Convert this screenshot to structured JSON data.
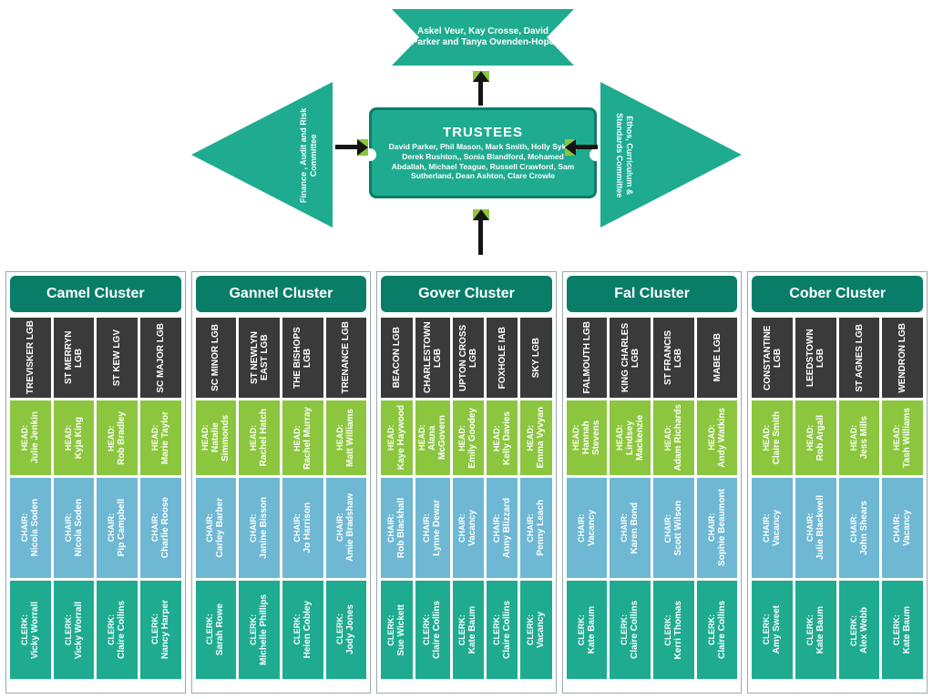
{
  "colors": {
    "teal": "#1fab90",
    "teal_dark": "#0a7d69",
    "grey_dark": "#3a3a3a",
    "green": "#8cc63f",
    "sky": "#6fb8d3",
    "text": "#ffffff"
  },
  "top": {
    "members": "Askel Veur, Kay Crosse, David Parker and Tanya Ovenden-Hope",
    "trustees_title": "TRUSTEES",
    "trustees_names": "David Parker, Phil Mason, Mark Smith, Holly Sykes, Derek Rushton,, Sonia Blandford, Mohamed Abdallah, Michael Teague, Russell Crawford, Sam Sutherland, Dean Ashton, Clare Crowle",
    "left_committee": "Finance , Audit and Risk Committee",
    "right_committee": "Ethos, Curriculum & Standards Committee"
  },
  "row_labels": {
    "head": "HEAD:",
    "chair": "CHAIR:",
    "clerk": "CLERK:"
  },
  "row_colors": {
    "lgb": "#3a3a3a",
    "head": "#8cc63f",
    "chair": "#6fb8d3",
    "clerk": "#1fab90"
  },
  "clusters": [
    {
      "title": "Camel Cluster",
      "schools": [
        {
          "lgb": "TREVISKER LGB",
          "head": "Julie Jenkin",
          "chair": "Nicola Soden",
          "clerk": "Vicky Worrall"
        },
        {
          "lgb": "ST MERRYN LGB",
          "head": "Kyja King",
          "chair": "Nicola Soden",
          "clerk": "Vicky Worrall"
        },
        {
          "lgb": "ST KEW LGV",
          "head": "Rob Bradley",
          "chair": "Pip Campbell",
          "clerk": "Claire Collins"
        },
        {
          "lgb": "SC MAJOR LGB",
          "head": "Marie Taylor",
          "chair": "Charlie Roose",
          "clerk": "Nancy Harper"
        }
      ]
    },
    {
      "title": "Gannel Cluster",
      "schools": [
        {
          "lgb": "SC MINOR LGB",
          "head": "Natalie Simmonds",
          "chair": "Carley Barber",
          "clerk": "Sarah Rowe"
        },
        {
          "lgb": "ST NEWLYN EAST LGB",
          "head": "Rachel Hatch",
          "chair": "Janine Bisson",
          "clerk": "Michelle Phillips"
        },
        {
          "lgb": "THE BISHOPS LGB",
          "head": "Rachel Murray",
          "chair": "Jo Harrison",
          "clerk": "Helen Cobley"
        },
        {
          "lgb": "TRENANCE LGB",
          "head": "Matt Williams",
          "chair": "Amie Bradshaw",
          "clerk": "Jody Jones"
        }
      ]
    },
    {
      "title": "Gover Cluster",
      "schools": [
        {
          "lgb": "BEACON LGB",
          "head": "Kaye Haywood",
          "chair": "Rob Blackhall",
          "clerk": "Sue Wickett"
        },
        {
          "lgb": "CHARLESTOWN LGB",
          "head": "Alana McGovern",
          "chair": "Lynne Dewar",
          "clerk": "Claire Collins"
        },
        {
          "lgb": "UPTON CROSS LGB",
          "head": "Emily Goodey",
          "chair": "Vacancy",
          "clerk": "Kate Baum"
        },
        {
          "lgb": "FOXHOLE IAB",
          "head": "Kelly Davies",
          "chair": "Anny Blizzard",
          "clerk": "Claire Collins"
        },
        {
          "lgb": "SKY LGB",
          "head": "Emma Vyvyan",
          "chair": "Penny Leach",
          "clerk": "Vacancy"
        }
      ]
    },
    {
      "title": "Fal Cluster",
      "schools": [
        {
          "lgb": "FALMOUTH LGB",
          "head": "Hannah Stevens",
          "chair": "Vacancy",
          "clerk": "Kate Baum"
        },
        {
          "lgb": "KING CHARLES LGB",
          "head": "Lindsey Mackenzie",
          "chair": "Karen Bond",
          "clerk": "Claire Collins"
        },
        {
          "lgb": "ST FRANCIS LGB",
          "head": "Adam Richards",
          "chair": "Scott Wilson",
          "clerk": "Kerri Thomas"
        },
        {
          "lgb": "MABE LGB",
          "head": "Andy Watkins",
          "chair": "Sophie Beaumont",
          "clerk": "Claire Collins"
        }
      ]
    },
    {
      "title": "Cober Cluster",
      "schools": [
        {
          "lgb": "CONSTANTINE LGB",
          "head": "Claire Smith",
          "chair": "Vacancy",
          "clerk": "Amy Sweet"
        },
        {
          "lgb": "LEEDSTOWN LGB",
          "head": "Rob Argall",
          "chair": "Julie Blackwell",
          "clerk": "Kate Baum"
        },
        {
          "lgb": "ST AGNES LGB",
          "head": "Jess Mills",
          "chair": "John Shears",
          "clerk": "Alex Webb"
        },
        {
          "lgb": "WENDRON LGB",
          "head": "Tash Williams",
          "chair": "Vacancy",
          "clerk": "Kate Baum"
        }
      ]
    }
  ]
}
